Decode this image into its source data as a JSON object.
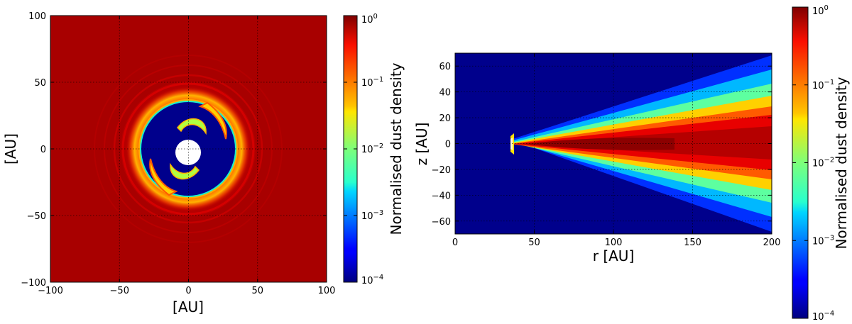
{
  "chart_data": [
    {
      "type": "heatmap",
      "view": "face-on",
      "xlabel": "[AU]",
      "ylabel": "[AU]",
      "xlim": [
        -100,
        100
      ],
      "ylim": [
        -100,
        100
      ],
      "xticks": [
        "−100",
        "−50",
        "0",
        "50",
        "100"
      ],
      "yticks": [
        "100",
        "50",
        "0",
        "−50",
        "−100"
      ],
      "grid": true,
      "colormap": "jet",
      "color_scale": "log",
      "colorbar": {
        "label": "Normalised dust density",
        "range": [
          0.0001,
          1
        ],
        "ticks": [
          {
            "base": "10",
            "exp": "0",
            "value": 1
          },
          {
            "base": "10",
            "exp": "−1",
            "value": 0.1
          },
          {
            "base": "10",
            "exp": "−2",
            "value": 0.01
          },
          {
            "base": "10",
            "exp": "−3",
            "value": 0.001
          },
          {
            "base": "10",
            "exp": "−4",
            "value": 0.0001
          }
        ]
      },
      "features": {
        "gap_outer_radius_au": 35,
        "inner_hole_radius_au": 8,
        "outer_disc_level": 1
      }
    },
    {
      "type": "heatmap",
      "view": "edge-on",
      "xlabel": "r [AU]",
      "ylabel": "z [AU]",
      "xlim": [
        0,
        200
      ],
      "ylim": [
        -70,
        70
      ],
      "xticks": [
        "0",
        "50",
        "100",
        "150",
        "200"
      ],
      "yticks": [
        "60",
        "40",
        "20",
        "0",
        "−20",
        "−40",
        "−60"
      ],
      "grid": true,
      "colormap": "jet",
      "color_scale": "log",
      "colorbar": {
        "label": "Normalised dust density",
        "range": [
          0.0001,
          1
        ],
        "ticks": [
          {
            "base": "10",
            "exp": "0",
            "value": 1
          },
          {
            "base": "10",
            "exp": "−1",
            "value": 0.1
          },
          {
            "base": "10",
            "exp": "−2",
            "value": 0.01
          },
          {
            "base": "10",
            "exp": "−3",
            "value": 0.001
          },
          {
            "base": "10",
            "exp": "−4",
            "value": 0.0001
          }
        ]
      },
      "features": {
        "inner_rim_au": 35,
        "aspect_ratio": 0.35,
        "flaring": 1.25
      }
    }
  ]
}
